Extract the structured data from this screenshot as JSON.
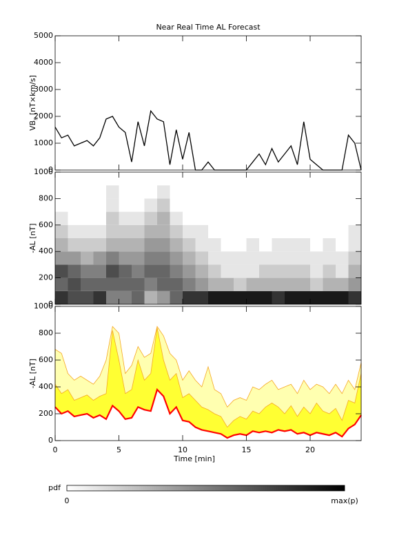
{
  "chart_data": [
    {
      "type": "line",
      "title": "Near Real Time AL Forecast",
      "ylabel": [
        "VB",
        "s",
        " [nT×km/s]"
      ],
      "xlim": [
        0,
        24
      ],
      "xticks": [
        0,
        5,
        10,
        15,
        20
      ],
      "ylim": [
        0,
        5000
      ],
      "yticks": [
        0,
        1000,
        2000,
        3000,
        4000,
        5000
      ],
      "color": "#000000",
      "x": [
        0,
        0.5,
        1,
        1.5,
        2,
        2.5,
        3,
        3.5,
        4,
        4.5,
        5,
        5.5,
        6,
        6.5,
        7,
        7.5,
        8,
        8.5,
        9,
        9.5,
        10,
        10.5,
        11,
        11.5,
        12,
        12.5,
        13,
        13.5,
        14,
        14.5,
        15,
        15.5,
        16,
        16.5,
        17,
        17.5,
        18,
        18.5,
        19,
        19.5,
        20,
        20.5,
        21,
        21.5,
        22,
        22.5,
        23,
        23.5,
        24
      ],
      "values": [
        1600,
        1200,
        1300,
        900,
        1000,
        1100,
        900,
        1200,
        1900,
        2000,
        1600,
        1400,
        300,
        1800,
        900,
        2200,
        1900,
        1800,
        200,
        1500,
        400,
        1400,
        0,
        0,
        300,
        0,
        0,
        0,
        0,
        0,
        0,
        300,
        600,
        200,
        800,
        300,
        600,
        900,
        200,
        1800,
        400,
        200,
        0,
        0,
        0,
        0,
        1300,
        1000,
        0
      ]
    },
    {
      "type": "heatmap",
      "ylabel": "-AL [nT]",
      "xlim": [
        0,
        24
      ],
      "xticks": [
        0,
        5,
        10,
        15,
        20
      ],
      "ylim": [
        0,
        1000
      ],
      "yticks": [
        0,
        200,
        400,
        600,
        800,
        1000
      ],
      "xbins": [
        0,
        1,
        2,
        3,
        4,
        5,
        6,
        7,
        8,
        9,
        10,
        11,
        12,
        13,
        14,
        15,
        16,
        17,
        18,
        19,
        20,
        21,
        22,
        23,
        24
      ],
      "ybins": [
        0,
        100,
        200,
        300,
        400,
        500,
        600,
        700,
        800,
        900,
        1000
      ],
      "values": [
        [
          0.8,
          0.6,
          0.7,
          0.4,
          0.3,
          0.2,
          0.1,
          0,
          0,
          0
        ],
        [
          0.7,
          0.7,
          0.6,
          0.4,
          0.2,
          0.1,
          0,
          0,
          0,
          0
        ],
        [
          0.7,
          0.6,
          0.5,
          0.3,
          0.2,
          0.1,
          0,
          0,
          0,
          0
        ],
        [
          0.8,
          0.6,
          0.5,
          0.4,
          0.2,
          0.1,
          0,
          0,
          0,
          0
        ],
        [
          0.5,
          0.6,
          0.7,
          0.5,
          0.3,
          0.2,
          0.2,
          0.1,
          0.1,
          0
        ],
        [
          0.5,
          0.6,
          0.6,
          0.4,
          0.3,
          0.2,
          0.1,
          0,
          0,
          0
        ],
        [
          0.6,
          0.6,
          0.5,
          0.4,
          0.3,
          0.2,
          0.1,
          0,
          0,
          0
        ],
        [
          0.3,
          0.5,
          0.6,
          0.5,
          0.4,
          0.3,
          0.2,
          0.1,
          0,
          0
        ],
        [
          0.4,
          0.6,
          0.6,
          0.5,
          0.4,
          0.3,
          0.3,
          0.2,
          0.1,
          0
        ],
        [
          0.6,
          0.6,
          0.5,
          0.4,
          0.3,
          0.2,
          0.1,
          0,
          0,
          0
        ],
        [
          0.8,
          0.5,
          0.4,
          0.3,
          0.2,
          0.1,
          0,
          0,
          0,
          0
        ],
        [
          0.8,
          0.4,
          0.3,
          0.2,
          0.1,
          0.1,
          0,
          0,
          0,
          0
        ],
        [
          0.9,
          0.3,
          0.2,
          0.1,
          0.1,
          0,
          0,
          0,
          0,
          0
        ],
        [
          0.9,
          0.3,
          0.1,
          0.1,
          0,
          0,
          0,
          0,
          0,
          0
        ],
        [
          0.9,
          0.2,
          0.1,
          0.1,
          0,
          0,
          0,
          0,
          0,
          0
        ],
        [
          0.9,
          0.3,
          0.1,
          0.1,
          0.1,
          0,
          0,
          0,
          0,
          0
        ],
        [
          0.9,
          0.3,
          0.2,
          0.1,
          0,
          0,
          0,
          0,
          0,
          0
        ],
        [
          0.8,
          0.3,
          0.2,
          0.1,
          0.1,
          0,
          0,
          0,
          0,
          0
        ],
        [
          0.9,
          0.3,
          0.2,
          0.1,
          0.1,
          0,
          0,
          0,
          0,
          0
        ],
        [
          0.9,
          0.3,
          0.2,
          0.1,
          0.1,
          0,
          0,
          0,
          0,
          0
        ],
        [
          0.9,
          0.2,
          0.1,
          0.1,
          0,
          0,
          0,
          0,
          0,
          0
        ],
        [
          0.9,
          0.3,
          0.2,
          0.1,
          0.1,
          0,
          0,
          0,
          0,
          0
        ],
        [
          0.9,
          0.3,
          0.1,
          0.1,
          0,
          0,
          0,
          0,
          0,
          0
        ],
        [
          0.8,
          0.4,
          0.3,
          0.2,
          0.1,
          0.1,
          0,
          0,
          0,
          0
        ]
      ]
    },
    {
      "type": "band",
      "ylabel": "-AL [nT]",
      "xlabel": "Time [min]",
      "xlim": [
        0,
        24
      ],
      "xticks": [
        0,
        5,
        10,
        15,
        20
      ],
      "ylim": [
        0,
        1000
      ],
      "yticks": [
        0,
        200,
        400,
        600,
        800,
        1000
      ],
      "x": [
        0,
        0.5,
        1,
        1.5,
        2,
        2.5,
        3,
        3.5,
        4,
        4.5,
        5,
        5.5,
        6,
        6.5,
        7,
        7.5,
        8,
        8.5,
        9,
        9.5,
        10,
        10.5,
        11,
        11.5,
        12,
        12.5,
        13,
        13.5,
        14,
        14.5,
        15,
        15.5,
        16,
        16.5,
        17,
        17.5,
        18,
        18.5,
        19,
        19.5,
        20,
        20.5,
        21,
        21.5,
        22,
        22.5,
        23,
        23.5,
        24
      ],
      "median": {
        "color": "#ff0000",
        "values": [
          250,
          200,
          220,
          180,
          190,
          200,
          170,
          190,
          160,
          260,
          220,
          160,
          170,
          250,
          230,
          220,
          380,
          330,
          200,
          250,
          150,
          140,
          100,
          80,
          70,
          60,
          50,
          20,
          40,
          50,
          40,
          70,
          60,
          70,
          60,
          80,
          70,
          80,
          50,
          60,
          40,
          60,
          50,
          40,
          60,
          30,
          90,
          120,
          190
        ]
      },
      "inner": {
        "color": "#ffff33",
        "values": [
          420,
          350,
          380,
          300,
          320,
          340,
          300,
          330,
          350,
          820,
          600,
          350,
          380,
          600,
          450,
          500,
          840,
          600,
          450,
          500,
          320,
          350,
          300,
          250,
          230,
          200,
          180,
          100,
          150,
          180,
          160,
          220,
          200,
          250,
          280,
          250,
          200,
          260,
          180,
          250,
          200,
          280,
          220,
          200,
          240,
          150,
          300,
          280,
          500
        ]
      },
      "outer": {
        "color": "#ffffb0",
        "edge": "#f5a623",
        "values": [
          680,
          650,
          500,
          450,
          480,
          450,
          420,
          480,
          600,
          850,
          800,
          500,
          560,
          700,
          620,
          650,
          850,
          780,
          650,
          600,
          450,
          520,
          450,
          400,
          550,
          380,
          350,
          250,
          300,
          320,
          300,
          400,
          380,
          420,
          450,
          380,
          400,
          420,
          350,
          450,
          380,
          420,
          400,
          350,
          420,
          350,
          450,
          380,
          580
        ]
      }
    }
  ],
  "colorbar": {
    "label": "pdf",
    "min_label": "0",
    "max_label": "max(p)"
  }
}
